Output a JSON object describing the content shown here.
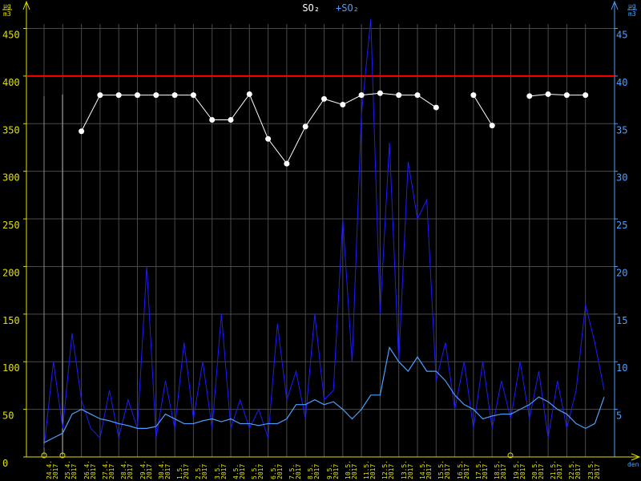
{
  "chart_data": {
    "type": "line",
    "title": "SO₂",
    "y_unit": {
      "top": "µg",
      "bottom": "m3"
    },
    "y2_unit": {
      "top": "µg",
      "bottom": "m3"
    },
    "xlabel": "den",
    "categories": [
      "24.4.\n2017",
      "25.4.\n2017",
      "26.4.\n2017",
      "27.4.\n2017",
      "28.4.\n2017",
      "29.4.\n2017",
      "30.4.\n2017",
      "1.5.\n2017",
      "2.5.\n2017",
      "3.5.\n2017",
      "4.5.\n2017",
      "5.5.\n2017",
      "6.5.\n2017",
      "7.5.\n2017",
      "8.5.\n2017",
      "9.5.\n2017",
      "10.5.\n2017",
      "11.5.\n2017",
      "12.5.\n2017",
      "13.5.\n2017",
      "14.5.\n2017",
      "15.5.\n2017",
      "16.5.\n2017",
      "17.5.\n2017",
      "18.5.\n2017",
      "19.5.\n2017",
      "20.5.\n2017",
      "21.5.\n2017",
      "22.5.\n2017",
      "23.5.\n2017"
    ],
    "xlim": [
      0,
      30
    ],
    "x": [
      0,
      0.5,
      1,
      1.5,
      2,
      2.5,
      3,
      3.5,
      4,
      4.5,
      5,
      5.5,
      6,
      6.5,
      7,
      7.5,
      8,
      8.5,
      9,
      9.5,
      10,
      10.5,
      11,
      11.5,
      12,
      12.5,
      13,
      13.5,
      14,
      14.5,
      15,
      15.5,
      16,
      16.5,
      17,
      17.5,
      18,
      18.5,
      19,
      19.5,
      20,
      20.5,
      21,
      21.5,
      22,
      22.5,
      23,
      23.5,
      24,
      24.5,
      25,
      25.5,
      26,
      26.5,
      27,
      27.5,
      28,
      28.5,
      29,
      29.5,
      30
    ],
    "ylim": [
      0,
      450
    ],
    "yticks": [
      0,
      50,
      100,
      150,
      200,
      250,
      300,
      350,
      400,
      450
    ],
    "y2lim": [
      0,
      45
    ],
    "y2ticks": [
      5,
      10,
      15,
      20,
      25,
      30,
      35,
      40,
      45
    ],
    "grid": true,
    "limit": {
      "value": 400,
      "color": "#ff0000"
    },
    "series": [
      {
        "name": "SO₂",
        "color": "#ffffff",
        "values": [
          null,
          null,
          342,
          380,
          380,
          380,
          380,
          380,
          380,
          354,
          354,
          381,
          334,
          308,
          347,
          376,
          370,
          380,
          382,
          380,
          380,
          367,
          null,
          380,
          348,
          null,
          379,
          381,
          380,
          380
        ]
      },
      {
        "name": "+SO₂",
        "color": "#1c1cff",
        "axis": "y2",
        "values": [
          1,
          10,
          3,
          13,
          6,
          3,
          2,
          7,
          2,
          6,
          3,
          20,
          2,
          8,
          3,
          12,
          4,
          10,
          3,
          15,
          3,
          6,
          3,
          5,
          2,
          14,
          6,
          9,
          4,
          15,
          6,
          7,
          25,
          10,
          36,
          46,
          15,
          33,
          10,
          31,
          25,
          27,
          8,
          12,
          5,
          10,
          3,
          10,
          3,
          8,
          4,
          10,
          4,
          9,
          2,
          8,
          3,
          7,
          16,
          12,
          7
        ]
      },
      {
        "color": "#4aa0ff",
        "axis": "y2",
        "values": [
          1.5,
          2,
          2.5,
          4.5,
          5,
          4.5,
          4,
          3.8,
          3.5,
          3.3,
          3,
          3,
          3.2,
          4.5,
          4,
          3.5,
          3.5,
          3.8,
          4,
          3.7,
          4,
          3.5,
          3.5,
          3.3,
          3.5,
          3.5,
          4,
          5.5,
          5.5,
          6,
          5.5,
          5.8,
          5,
          4,
          5,
          6.5,
          6.5,
          11.5,
          10,
          9,
          10.5,
          9,
          9,
          8,
          6.5,
          5.5,
          5,
          4,
          4.3,
          4.5,
          4.5,
          5,
          5.5,
          6.3,
          5.8,
          5,
          4.5,
          3.5,
          3,
          3.5,
          6.3
        ]
      }
    ]
  }
}
